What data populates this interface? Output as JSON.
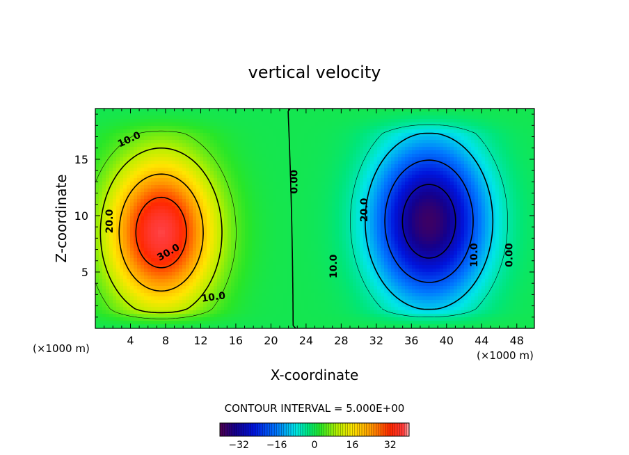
{
  "chart_data": {
    "type": "heatmap",
    "title": "vertical velocity",
    "xlabel": "X-coordinate",
    "ylabel": "Z-coordinate",
    "x_unit": "(×1000 m)",
    "z_unit": "(×1000 m)",
    "xlim": [
      0,
      50
    ],
    "ylim": [
      0,
      19.5
    ],
    "xticks": [
      4,
      8,
      12,
      16,
      20,
      24,
      28,
      32,
      36,
      40,
      44,
      48
    ],
    "xtick_labels": [
      "4",
      "8",
      "12",
      "16",
      "20",
      "24",
      "28",
      "32",
      "36",
      "40",
      "44",
      "48"
    ],
    "yticks": [
      5,
      10,
      15
    ],
    "ytick_labels": [
      "5",
      "10",
      "15"
    ],
    "grid": false,
    "updraft": {
      "center_x": 7.5,
      "center_z": 8.5,
      "max": 35
    },
    "downdraft": {
      "center_x": 38,
      "center_z": 9.5,
      "min": -35
    },
    "contour_interval_text": "CONTOUR INTERVAL = 5.000E+00",
    "contour_labels": [
      {
        "text": "10.0",
        "x": 4,
        "z": 16.5
      },
      {
        "text": "20.0",
        "x": 2,
        "z": 9.5
      },
      {
        "text": "30.0",
        "x": 8.5,
        "z": 6.5
      },
      {
        "text": "10.0",
        "x": 13.5,
        "z": 2.5
      },
      {
        "text": "0.00",
        "x": 23,
        "z": 13
      },
      {
        "text": "20.0",
        "x": 31,
        "z": 10.5
      },
      {
        "text": "10.0",
        "x": 27.5,
        "z": 5.5
      },
      {
        "text": "10.0",
        "x": 43.5,
        "z": 6.5
      },
      {
        "text": "0.00",
        "x": 47.5,
        "z": 6.5
      }
    ],
    "colorbar": {
      "min": -40,
      "max": 40,
      "ticks": [
        -32,
        -16,
        0,
        16,
        32
      ],
      "tick_labels": [
        "−32",
        "−16",
        "0",
        "16",
        "32"
      ]
    }
  }
}
